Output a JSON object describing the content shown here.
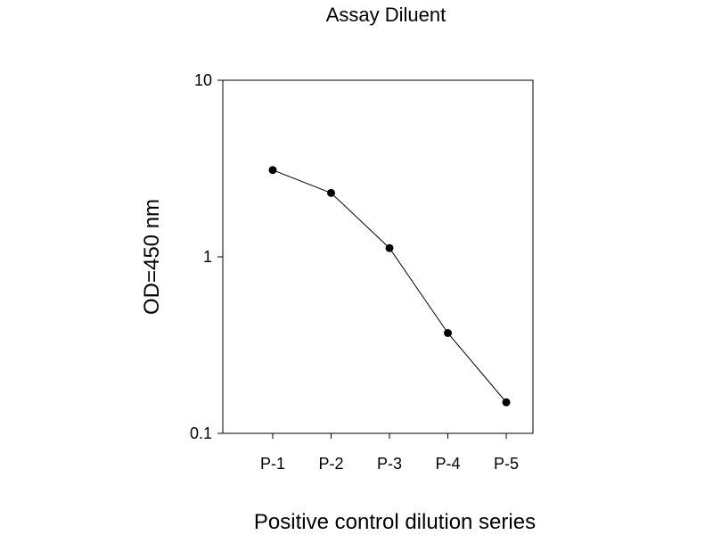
{
  "chart_data": {
    "type": "line",
    "title": "Assay Diluent",
    "xlabel": "Positive control dilution series",
    "ylabel": "OD=450 nm",
    "categories": [
      "P-1",
      "P-2",
      "P-3",
      "P-4",
      "P-5"
    ],
    "series": [
      {
        "values": [
          3.1,
          2.3,
          1.12,
          0.37,
          0.15
        ]
      }
    ],
    "y_scale": "log",
    "ylim": [
      0.1,
      10
    ],
    "y_ticks": [
      0.1,
      1,
      10
    ],
    "y_tick_labels": [
      "0.1",
      "1",
      "10"
    ],
    "grid": false,
    "legend": "none",
    "colors": {
      "line": "#000000",
      "marker": "#000000",
      "axis": "#000000"
    }
  }
}
